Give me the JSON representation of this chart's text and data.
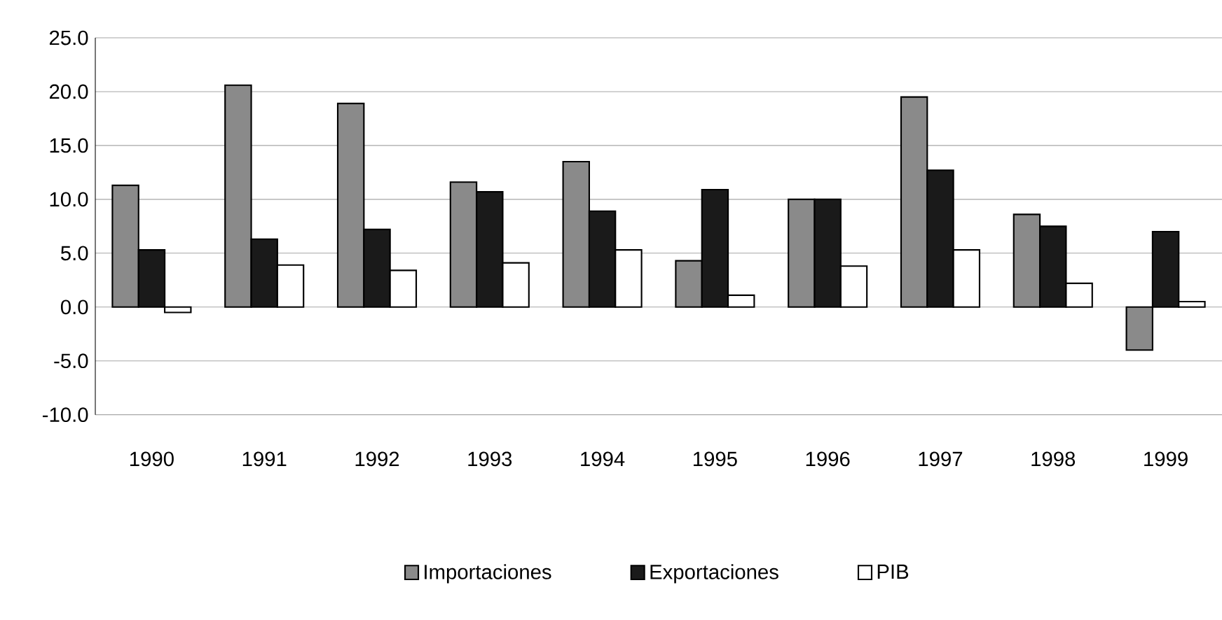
{
  "chart_data": {
    "type": "bar",
    "categories": [
      "1990",
      "1991",
      "1992",
      "1993",
      "1994",
      "1995",
      "1996",
      "1997",
      "1998",
      "1999"
    ],
    "series": [
      {
        "name": "Importaciones",
        "color": "#8a8a8a",
        "values": [
          11.3,
          20.6,
          18.9,
          11.6,
          13.5,
          4.3,
          10.0,
          19.5,
          8.6,
          -4.0
        ]
      },
      {
        "name": "Exportaciones",
        "color": "#1a1a1a",
        "values": [
          5.3,
          6.3,
          7.2,
          10.7,
          8.9,
          10.9,
          10.0,
          12.7,
          7.5,
          7.0
        ]
      },
      {
        "name": "PIB",
        "color": "#ffffff",
        "values": [
          -0.5,
          3.9,
          3.4,
          4.1,
          5.3,
          1.1,
          3.8,
          5.3,
          2.2,
          0.5
        ]
      }
    ],
    "ylim": [
      -10,
      25
    ],
    "yticks": [
      {
        "value": -10,
        "label": "-10.0"
      },
      {
        "value": -5,
        "label": "-5.0"
      },
      {
        "value": 0,
        "label": "0.0"
      },
      {
        "value": 5,
        "label": "5.0"
      },
      {
        "value": 10,
        "label": "10.0"
      },
      {
        "value": 15,
        "label": "15.0"
      },
      {
        "value": 20,
        "label": "20.0"
      },
      {
        "value": 25,
        "label": "25.0"
      }
    ],
    "grid": "y",
    "legend": "bottom"
  }
}
